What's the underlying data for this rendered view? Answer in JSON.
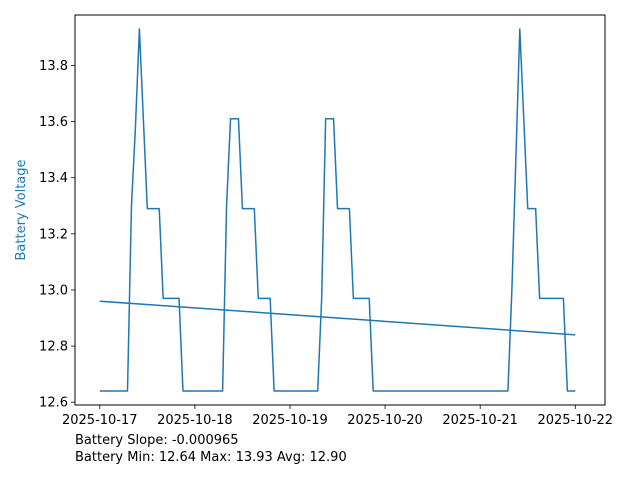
{
  "chart_data": {
    "type": "line",
    "ylabel": "Battery Voltage",
    "ylabel_color": "#1f77b4",
    "line_color": "#1f77b4",
    "xlim": [
      "2025-10-16T17:45",
      "2025-10-22T07:30"
    ],
    "ylim": [
      12.59,
      13.98
    ],
    "x_ticks": [
      {
        "value": "2025-10-17T00:00",
        "label": "2025-10-17"
      },
      {
        "value": "2025-10-18T00:00",
        "label": "2025-10-18"
      },
      {
        "value": "2025-10-19T00:00",
        "label": "2025-10-19"
      },
      {
        "value": "2025-10-20T00:00",
        "label": "2025-10-20"
      },
      {
        "value": "2025-10-21T00:00",
        "label": "2025-10-21"
      },
      {
        "value": "2025-10-22T00:00",
        "label": "2025-10-22"
      }
    ],
    "y_ticks": [
      {
        "value": 12.6,
        "label": "12.6"
      },
      {
        "value": 12.8,
        "label": "12.8"
      },
      {
        "value": 13.0,
        "label": "13.0"
      },
      {
        "value": 13.2,
        "label": "13.2"
      },
      {
        "value": 13.4,
        "label": "13.4"
      },
      {
        "value": 13.6,
        "label": "13.6"
      },
      {
        "value": 13.8,
        "label": "13.8"
      }
    ],
    "grid": false,
    "series": [
      {
        "points": [
          [
            "2025-10-17T00:00",
            12.64
          ],
          [
            "2025-10-17T07:00",
            12.64
          ],
          [
            "2025-10-17T08:00",
            13.3
          ],
          [
            "2025-10-17T09:00",
            13.58
          ],
          [
            "2025-10-17T10:00",
            13.93
          ],
          [
            "2025-10-17T12:00",
            13.29
          ],
          [
            "2025-10-17T15:00",
            13.29
          ],
          [
            "2025-10-17T16:00",
            12.97
          ],
          [
            "2025-10-17T20:00",
            12.97
          ],
          [
            "2025-10-17T21:00",
            12.64
          ],
          [
            "2025-10-18T07:00",
            12.64
          ],
          [
            "2025-10-18T08:00",
            13.3
          ],
          [
            "2025-10-18T09:00",
            13.61
          ],
          [
            "2025-10-18T11:00",
            13.61
          ],
          [
            "2025-10-18T12:00",
            13.29
          ],
          [
            "2025-10-18T15:00",
            13.29
          ],
          [
            "2025-10-18T16:00",
            12.97
          ],
          [
            "2025-10-18T19:00",
            12.97
          ],
          [
            "2025-10-18T20:00",
            12.64
          ],
          [
            "2025-10-19T07:00",
            12.64
          ],
          [
            "2025-10-19T08:00",
            12.97
          ],
          [
            "2025-10-19T09:00",
            13.61
          ],
          [
            "2025-10-19T11:00",
            13.61
          ],
          [
            "2025-10-19T12:00",
            13.29
          ],
          [
            "2025-10-19T15:00",
            13.29
          ],
          [
            "2025-10-19T16:00",
            12.97
          ],
          [
            "2025-10-19T20:00",
            12.97
          ],
          [
            "2025-10-19T21:00",
            12.64
          ],
          [
            "2025-10-21T07:00",
            12.64
          ],
          [
            "2025-10-21T08:00",
            13.0
          ],
          [
            "2025-10-21T10:00",
            13.93
          ],
          [
            "2025-10-21T12:00",
            13.29
          ],
          [
            "2025-10-21T14:00",
            13.29
          ],
          [
            "2025-10-21T15:00",
            12.97
          ],
          [
            "2025-10-21T21:00",
            12.97
          ],
          [
            "2025-10-21T22:00",
            12.64
          ],
          [
            "2025-10-22T00:00",
            12.64
          ]
        ]
      },
      {
        "kind": "trend",
        "points": [
          [
            "2025-10-17T00:00",
            12.96
          ],
          [
            "2025-10-22T00:00",
            12.84
          ]
        ]
      }
    ]
  },
  "stats": {
    "slope_line": "Battery Slope: -0.000965",
    "summary_line": "Battery Min: 12.64 Max: 13.93 Avg: 12.90"
  }
}
